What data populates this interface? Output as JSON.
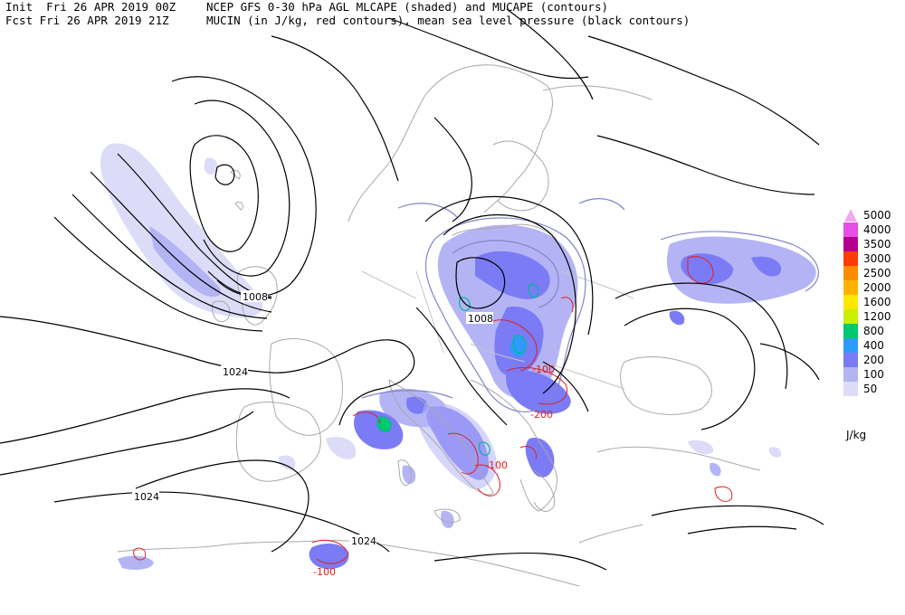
{
  "header": {
    "line1_left": "Init  Fri 26 APR 2019 00Z",
    "line2_left": "Fcst Fri 26 APR 2019 21Z",
    "line1_right": "NCEP GFS 0-30 hPa AGL MLCAPE (shaded) and MUCAPE (contours)",
    "line2_right": "MUCIN (in J/kg, red contours), mean sea level pressure (black contours)"
  },
  "legend": {
    "unit": "J/kg",
    "items": [
      {
        "label": "5000",
        "color": "#f4a8f0"
      },
      {
        "label": "4000",
        "color": "#e64ee6"
      },
      {
        "label": "3500",
        "color": "#b3008f"
      },
      {
        "label": "3000",
        "color": "#ff3a00"
      },
      {
        "label": "2500",
        "color": "#ff8c00"
      },
      {
        "label": "2000",
        "color": "#ffb300"
      },
      {
        "label": "1600",
        "color": "#ffe700"
      },
      {
        "label": "1200",
        "color": "#c8f000"
      },
      {
        "label": "800",
        "color": "#00c86e"
      },
      {
        "label": "400",
        "color": "#2e9bff"
      },
      {
        "label": "200",
        "color": "#7b7bf5"
      },
      {
        "label": "100",
        "color": "#b4b4f5"
      },
      {
        "label": "50",
        "color": "#dcdcf8"
      }
    ]
  },
  "map": {
    "isobar_labels": {
      "a": "1008",
      "b": "1008",
      "c": "1024",
      "d": "1024",
      "e": "1024"
    },
    "cin_labels": {
      "a": "-100",
      "b": "-200",
      "c": "-100",
      "d": "-100"
    },
    "colors": {
      "isobar": "#000000",
      "coast": "#a8a8a8",
      "cin": "#e0201c",
      "mucape": "#7f86c8"
    }
  }
}
